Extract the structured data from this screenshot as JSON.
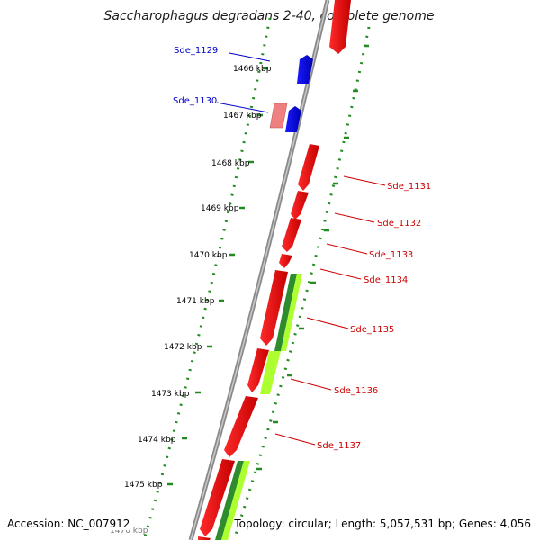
{
  "title": "Saccharophagus degradans 2-40, complete genome",
  "ruler": [
    "1466 kbp",
    "1467 kbp",
    "1468 kbp",
    "1469 kbp",
    "1470 kbp",
    "1471 kbp",
    "1472 kbp",
    "1473 kbp",
    "1474 kbp",
    "1475 kbp",
    "1476 kbp"
  ],
  "genes_reverse": [
    {
      "label": "Sde_1129",
      "color": "#0000cc"
    },
    {
      "label": "Sde_1130",
      "color": "#0000cc"
    }
  ],
  "genes_forward": [
    {
      "label": "Sde_1131",
      "color": "#cc0000"
    },
    {
      "label": "Sde_1132",
      "color": "#cc0000"
    },
    {
      "label": "Sde_1133",
      "color": "#cc0000"
    },
    {
      "label": "Sde_1134",
      "color": "#cc0000"
    },
    {
      "label": "Sde_1135",
      "color": "#cc0000"
    },
    {
      "label": "Sde_1136",
      "color": "#cc0000"
    },
    {
      "label": "Sde_1137",
      "color": "#cc0000"
    }
  ],
  "colors": {
    "forward_cds": "#ff0000",
    "reverse_cds": "#0000ff",
    "pseudo_cds": "#f08080",
    "feature_dark": "#2e8b2e",
    "feature_light": "#adff2f",
    "backbone": "#8a8a8a",
    "ticks": "#228b22"
  },
  "footer": {
    "accession": "Accession: NC_007912",
    "summary": "Topology: circular; Length: 5,057,531 bp; Genes: 4,056"
  }
}
